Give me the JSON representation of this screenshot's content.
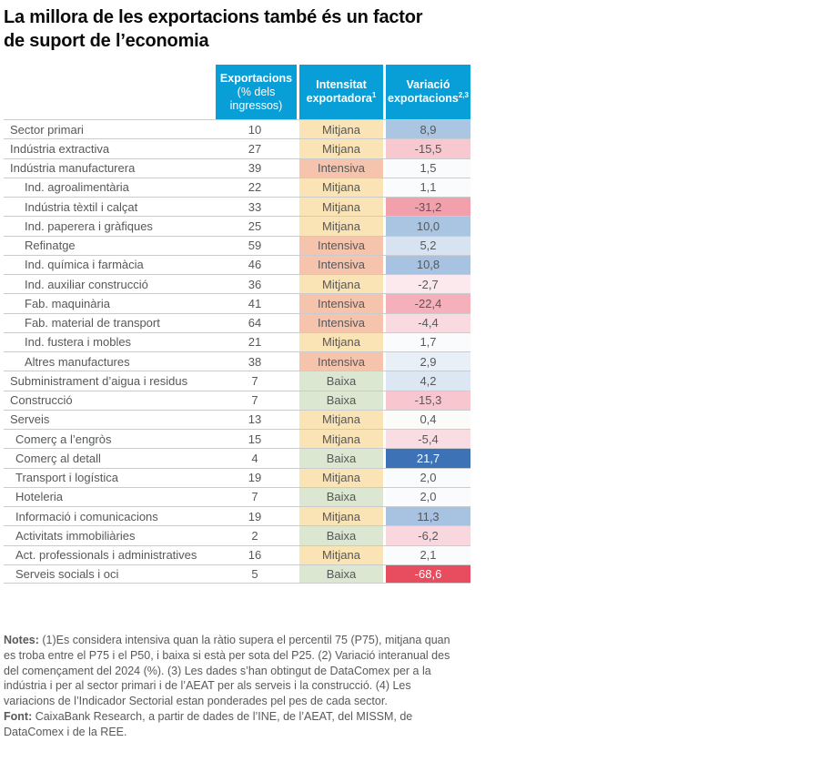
{
  "title": {
    "line1": "La millora de les exportacions també és un factor",
    "line2": "de suport de l’economia"
  },
  "colors": {
    "header_bg": "#089ed8",
    "header_text": "#ffffff",
    "row_divider": "#c9cbcd",
    "body_text": "#56585a",
    "intensity": {
      "Mitjana": "#fae3b4",
      "Intensiva": "#f6c3ac",
      "Baixa": "#dbe7d0"
    },
    "positive_strong": "#3d72b6",
    "negative_strong": "#e84c5f"
  },
  "chart_data": {
    "type": "table",
    "title": "La millora de les exportacions també és un factor de suport de l’economia",
    "columns": [
      {
        "name": "exportacions",
        "title": "Exportacions",
        "subtitle": "(% dels ingressos)",
        "sup": "",
        "subtitle_bold": false
      },
      {
        "name": "intensitat",
        "title": "Intensitat",
        "subtitle": "exportadora",
        "sup": "1",
        "subtitle_bold": true
      },
      {
        "name": "variacio",
        "title": "Variació",
        "subtitle": "exportacions",
        "sup": "2,3",
        "subtitle_bold": true
      }
    ],
    "rows": [
      {
        "label": "Sector primari",
        "indent": 0,
        "exports": "10",
        "intensity": "Mitjana",
        "variation": "8,9",
        "value": 8.9,
        "bg": "#aac6e3"
      },
      {
        "label": "Indústria extractiva",
        "indent": 0,
        "exports": "27",
        "intensity": "Mitjana",
        "variation": "-15,5",
        "value": -15.5,
        "bg": "#f8c8d1"
      },
      {
        "label": "Indústria manufacturera",
        "indent": 0,
        "exports": "39",
        "intensity": "Intensiva",
        "variation": "1,5",
        "value": 1.5,
        "bg": "#fafbfd"
      },
      {
        "label": "Ind. agroalimentària",
        "indent": 2,
        "exports": "22",
        "intensity": "Mitjana",
        "variation": "1,1",
        "value": 1.1,
        "bg": "#fafbfd"
      },
      {
        "label": "Indústria tèxtil i calçat",
        "indent": 2,
        "exports": "33",
        "intensity": "Mitjana",
        "variation": "-31,2",
        "value": -31.2,
        "bg": "#f3a0ad"
      },
      {
        "label": "Ind. paperera i gràfiques",
        "indent": 2,
        "exports": "25",
        "intensity": "Mitjana",
        "variation": "10,0",
        "value": 10.0,
        "bg": "#a9c5e2"
      },
      {
        "label": "Refinatge",
        "indent": 2,
        "exports": "59",
        "intensity": "Intensiva",
        "variation": "5,2",
        "value": 5.2,
        "bg": "#d7e3f1"
      },
      {
        "label": "Ind. química i farmàcia",
        "indent": 2,
        "exports": "46",
        "intensity": "Intensiva",
        "variation": "10,8",
        "value": 10.8,
        "bg": "#a7c3e1"
      },
      {
        "label": "Ind. auxiliar construcció",
        "indent": 2,
        "exports": "36",
        "intensity": "Mitjana",
        "variation": "-2,7",
        "value": -2.7,
        "bg": "#fbe9ed"
      },
      {
        "label": "Fab. maquinària",
        "indent": 2,
        "exports": "41",
        "intensity": "Intensiva",
        "variation": "-22,4",
        "value": -22.4,
        "bg": "#f5b0bb"
      },
      {
        "label": "Fab. material de transport",
        "indent": 2,
        "exports": "64",
        "intensity": "Intensiva",
        "variation": "-4,4",
        "value": -4.4,
        "bg": "#f9dae0"
      },
      {
        "label": "Ind. fustera i mobles",
        "indent": 2,
        "exports": "21",
        "intensity": "Mitjana",
        "variation": "1,7",
        "value": 1.7,
        "bg": "#fafbfd"
      },
      {
        "label": "Altres manufactures",
        "indent": 2,
        "exports": "38",
        "intensity": "Intensiva",
        "variation": "2,9",
        "value": 2.9,
        "bg": "#e8eff7"
      },
      {
        "label": "Subministrament d’aigua i residus",
        "indent": 0,
        "exports": "7",
        "intensity": "Baixa",
        "variation": "4,2",
        "value": 4.2,
        "bg": "#dce7f3"
      },
      {
        "label": "Construcció",
        "indent": 0,
        "exports": "7",
        "intensity": "Baixa",
        "variation": "-15,3",
        "value": -15.3,
        "bg": "#f8c6cf"
      },
      {
        "label": "Serveis",
        "indent": 0,
        "exports": "13",
        "intensity": "Mitjana",
        "variation": "0,4",
        "value": 0.4,
        "bg": "#fbfbfa"
      },
      {
        "label": "Comerç a l’engròs",
        "indent": 1,
        "exports": "15",
        "intensity": "Mitjana",
        "variation": "-5,4",
        "value": -5.4,
        "bg": "#f9dde2"
      },
      {
        "label": "Comerç al detall",
        "indent": 1,
        "exports": "4",
        "intensity": "Baixa",
        "variation": "21,7",
        "value": 21.7,
        "bg": "#3d72b6",
        "fg": "#ffffff"
      },
      {
        "label": "Transport i logística",
        "indent": 1,
        "exports": "19",
        "intensity": "Mitjana",
        "variation": "2,0",
        "value": 2.0,
        "bg": "#fafbfd"
      },
      {
        "label": "Hoteleria",
        "indent": 1,
        "exports": "7",
        "intensity": "Baixa",
        "variation": "2,0",
        "value": 2.0,
        "bg": "#fafbfd"
      },
      {
        "label": "Informació i comunicacions",
        "indent": 1,
        "exports": "19",
        "intensity": "Mitjana",
        "variation": "11,3",
        "value": 11.3,
        "bg": "#a7c3e1"
      },
      {
        "label": "Activitats immobiliàries",
        "indent": 1,
        "exports": "2",
        "intensity": "Baixa",
        "variation": "-6,2",
        "value": -6.2,
        "bg": "#f9d7de"
      },
      {
        "label": "Act. professionals i administratives",
        "indent": 1,
        "exports": "16",
        "intensity": "Mitjana",
        "variation": "2,1",
        "value": 2.1,
        "bg": "#fafbfd"
      },
      {
        "label": "Serveis socials i oci",
        "indent": 1,
        "exports": "5",
        "intensity": "Baixa",
        "variation": "-68,6",
        "value": -68.6,
        "bg": "#e84c5f",
        "fg": "#ffffff"
      }
    ]
  },
  "notes": {
    "notes_label": "Notes:",
    "notes_text": " (1)Es considera intensiva quan la ràtio supera el percentil 75 (P75), mitjana quan es troba entre el P75 i el P50, i baixa si està per sota del P25. (2) Variació interanual des del començament del 2024 (%). (3) Les dades s’han obtingut de DataComex per a la indústria i per al sector primari i de l’AEAT per als serveis i la construcció. (4) Les variacions de l’Indicador Sectorial estan ponderades pel pes de cada sector.",
    "font_label": "Font:",
    "font_text": " CaixaBank Research, a partir de dades de l’INE, de l’AEAT, del MISSM, de DataComex i de la REE."
  }
}
